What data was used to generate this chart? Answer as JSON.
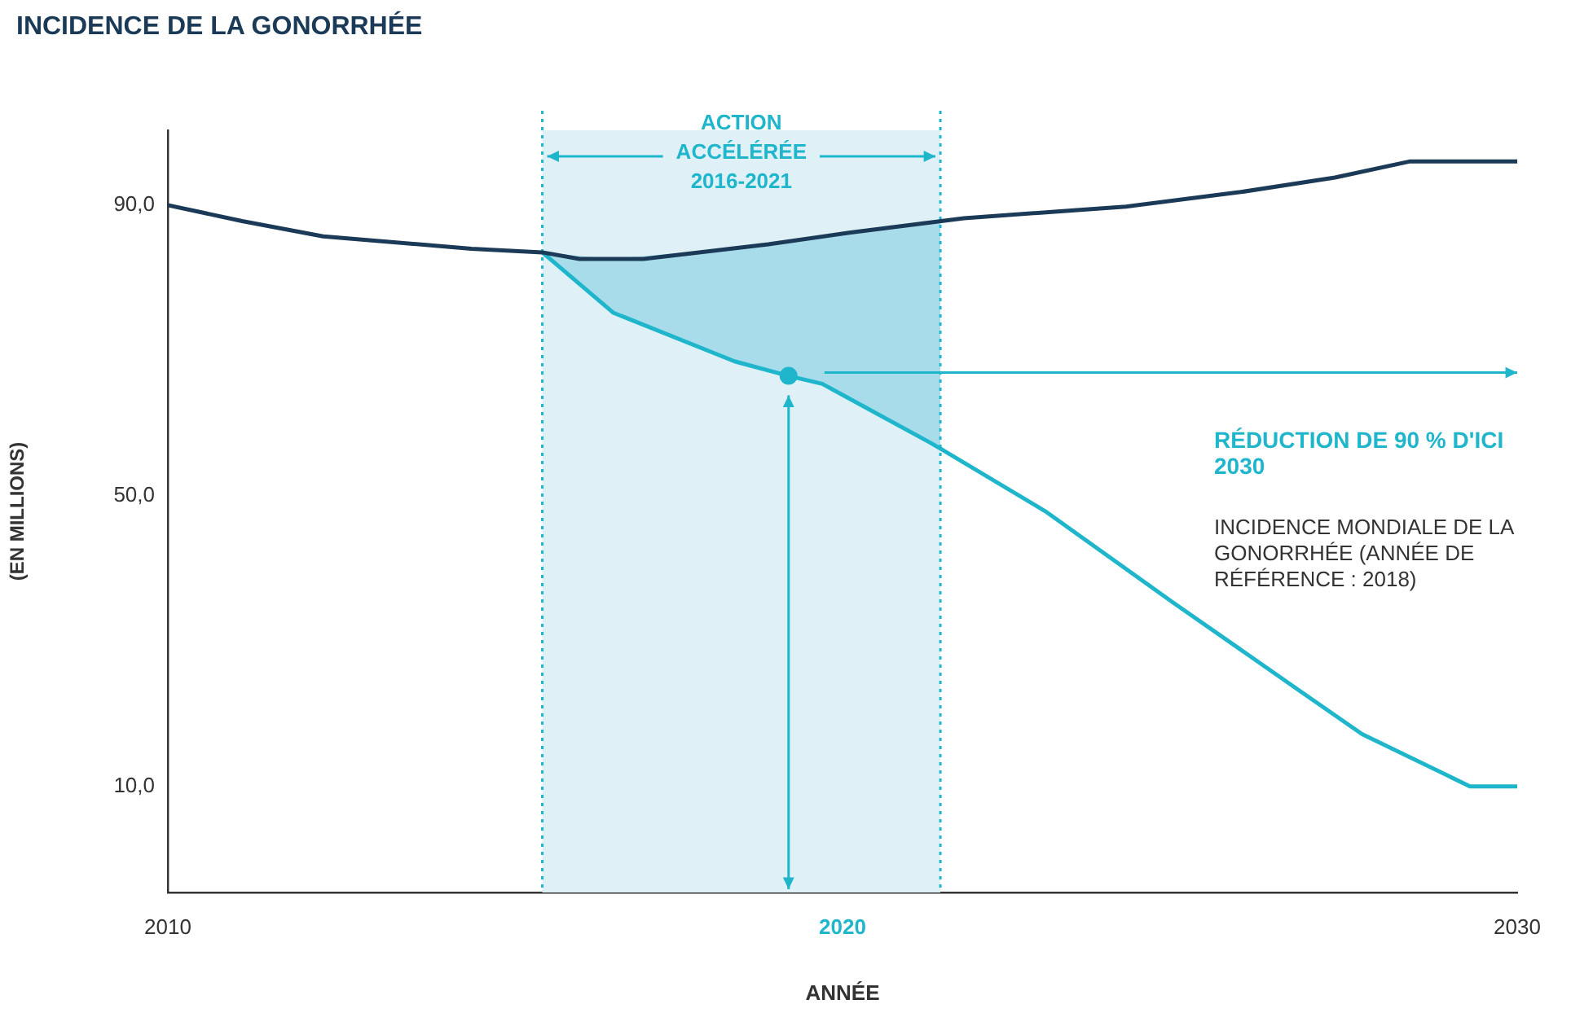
{
  "chart_data": {
    "type": "line",
    "title": "INCIDENCE DE LA GONORRHÉE",
    "xlabel": "ANNÉE",
    "ylabel": "(EN MILLIONS)",
    "xlim": [
      2010,
      2030
    ],
    "xticks": [
      2010,
      2020,
      2030
    ],
    "ylim": [
      -4.6,
      100.3
    ],
    "yticks": [
      {
        "value": 10,
        "label": "10,0"
      },
      {
        "value": 50,
        "label": "50,0"
      },
      {
        "value": 90,
        "label": "90,0"
      }
    ],
    "grid": false,
    "legend": false,
    "marker": "none",
    "line_style": "solid",
    "series": [
      {
        "color": "#1b3a57",
        "x": [
          2010,
          2011.1,
          2012.3,
          2014.5,
          2015.55,
          2016.1,
          2017.05,
          2018.9,
          2020.1,
          2021.8,
          2024.2,
          2025.9,
          2027.3,
          2028.4,
          2030
        ],
        "values": [
          90,
          87.8,
          85.7,
          84,
          83.5,
          82.6,
          82.6,
          84.6,
          86.2,
          88.2,
          89.8,
          91.8,
          93.8,
          96,
          96
        ]
      },
      {
        "color": "#1fb6cc",
        "x": [
          2015.55,
          2016.6,
          2018.4,
          2019.2,
          2019.7,
          2021.3,
          2021.45,
          2023,
          2024.9,
          2026.8,
          2027.7,
          2029.3,
          2030
        ],
        "values": [
          83.5,
          75.2,
          68.5,
          66.5,
          65.4,
          57.3,
          56.5,
          47.9,
          35.3,
          23,
          17.2,
          10,
          10
        ],
        "lower": [
          83.5,
          75.2,
          68.5,
          66.5,
          65.4,
          57.3,
          56.5,
          null,
          null,
          null,
          null,
          null,
          null
        ],
        "upper": [
          83.5,
          82.6,
          84.1,
          84.9,
          85.7,
          87.6,
          87.8,
          null,
          null,
          null,
          null,
          null,
          null
        ]
      },
      {
        "type": "scatter",
        "marker": "circle",
        "color": "#1fb6cc",
        "x": [
          2019.2
        ],
        "values": [
          66.5
        ]
      }
    ],
    "ref_lines": [
      {
        "axis": "x",
        "value": 2015.55,
        "color": "#1fb6cc",
        "line_style": "dotted"
      },
      {
        "axis": "x",
        "value": 2021.45,
        "color": "#1fb6cc",
        "line_style": "dotted"
      }
    ],
    "bands": [
      {
        "axis": "x",
        "from": 2015.55,
        "to": 2021.45,
        "label": "ACTION ACCÉLÉRÉE 2016-2021",
        "color": "#dff1f7"
      }
    ],
    "annotations": [
      "RÉDUCTION DE 90 % D'ICI 2030",
      "INCIDENCE MONDIALE DE LA GONORRHÉE (ANNÉE DE RÉFÉRENCE : 2018)"
    ]
  }
}
